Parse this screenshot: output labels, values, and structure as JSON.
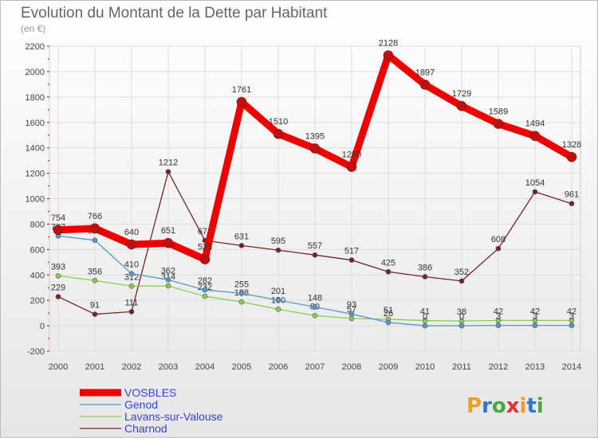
{
  "chart_data": {
    "type": "line",
    "title": "Evolution du Montant de la Dette par Habitant",
    "subtitle": "(en €)",
    "x": [
      "2000",
      "2001",
      "2002",
      "2003",
      "2004",
      "2005",
      "2006",
      "2007",
      "2008",
      "2009",
      "2010",
      "2011",
      "2012",
      "2013",
      "2014"
    ],
    "ylim": [
      -200,
      2200
    ],
    "yticks": [
      -200,
      0,
      200,
      400,
      600,
      800,
      1000,
      1200,
      1400,
      1600,
      1800,
      2000,
      2200
    ],
    "grid": true,
    "legend_position": "bottom-left",
    "series": [
      {
        "name": "VOSBLES",
        "color": "#ee0000",
        "values": [
          754,
          766,
          640,
          651,
          523,
          1761,
          1510,
          1395,
          1250,
          2128,
          1897,
          1729,
          1589,
          1494,
          1328
        ]
      },
      {
        "name": "Genod",
        "color": "#5599cc",
        "values": [
          707,
          673,
          410,
          362,
          282,
          255,
          201,
          148,
          93,
          26,
          0,
          0,
          3,
          3,
          3
        ]
      },
      {
        "name": "Lavans-sur-Valouse",
        "color": "#88cc55",
        "values": [
          393,
          356,
          312,
          314,
          232,
          188,
          130,
          80,
          57,
          51,
          41,
          38,
          42,
          42,
          42
        ]
      },
      {
        "name": "Charnod",
        "color": "#772222",
        "values": [
          229,
          91,
          111,
          1212,
          671,
          631,
          595,
          557,
          517,
          425,
          386,
          352,
          608,
          1054,
          961
        ]
      }
    ],
    "data_labels": {
      "VOSBLES": [
        "754",
        "766",
        "640",
        "651",
        "523",
        "1761",
        "1510",
        "1395",
        "1250",
        "2128",
        "1897",
        "1729",
        "1589",
        "1494",
        "1328"
      ],
      "Genod": [
        "707",
        "673",
        "410",
        "362",
        "282",
        "255",
        "201",
        "148",
        "93",
        "26",
        "0",
        "0",
        "3",
        "3",
        "3"
      ],
      "Lavans-sur-Valouse": [
        "393",
        "356",
        "312",
        "314",
        "232",
        "188",
        "130",
        "80",
        "57",
        "51",
        "41",
        "38",
        "42",
        "42",
        "42"
      ],
      "Charnod": [
        "229",
        "91",
        "111",
        "1212",
        "671",
        "631",
        "595",
        "557",
        "517",
        "425",
        "386",
        "352",
        "608",
        "1054",
        "961"
      ]
    }
  },
  "logo": {
    "text": "Proxiti"
  }
}
